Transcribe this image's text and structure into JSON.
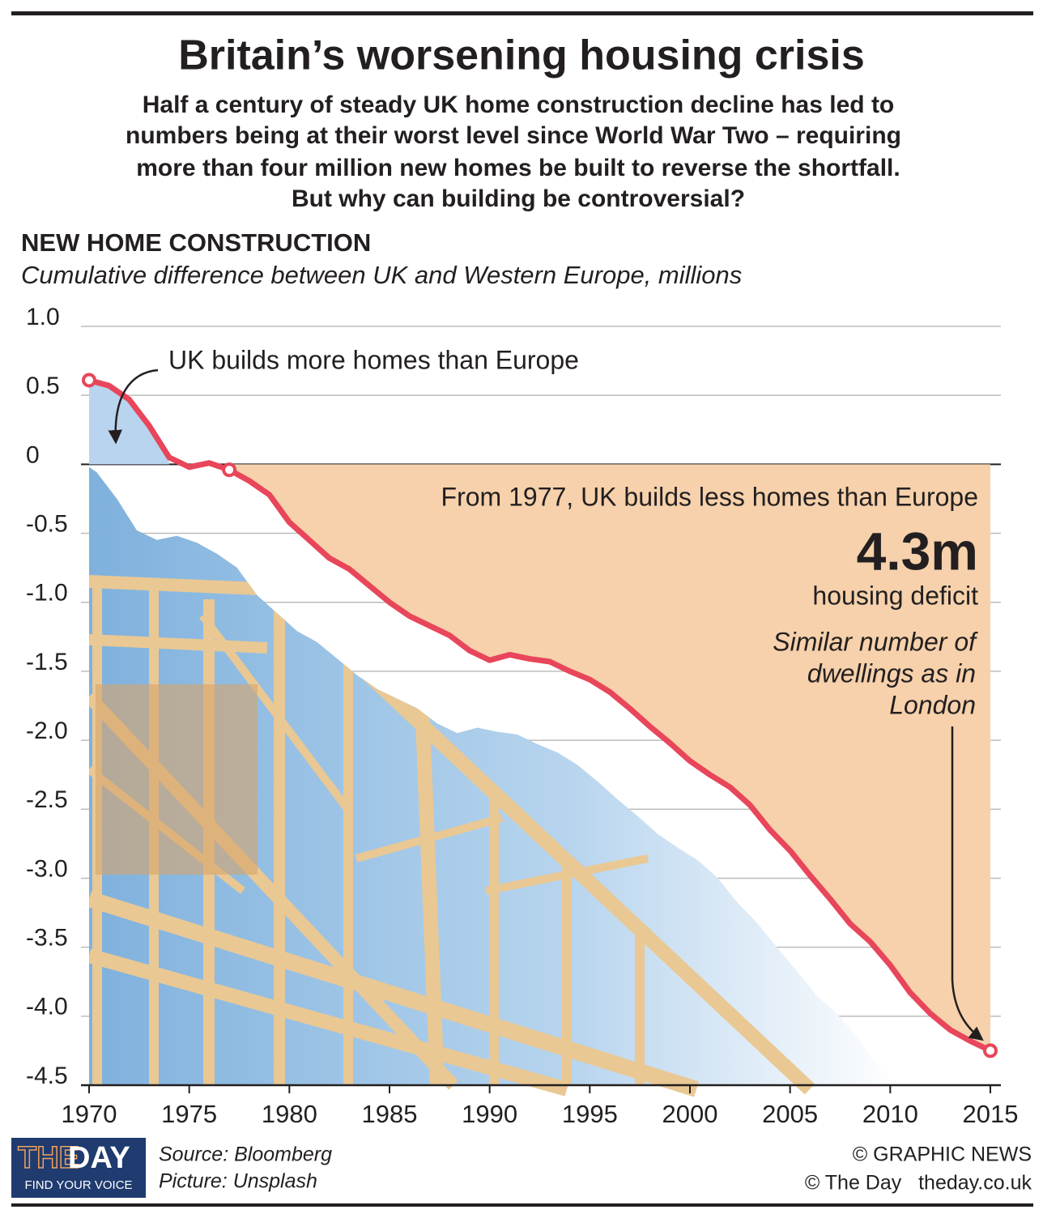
{
  "chart_data": {
    "type": "line",
    "title": "Britain’s worsening housing crisis",
    "subtitle": [
      "Half a century of steady UK home construction decline has led to",
      "numbers being at their worst level since World War Two – requiring",
      "more than four million new homes be built to reverse the shortfall.",
      "But why can building be controversial?"
    ],
    "heading": "NEW HOME CONSTRUCTION",
    "y_label": "Cumulative difference between UK and Western Europe, millions",
    "x": [
      1970,
      1971,
      1972,
      1973,
      1974,
      1975,
      1976,
      1977,
      1978,
      1979,
      1980,
      1981,
      1982,
      1983,
      1984,
      1985,
      1986,
      1987,
      1988,
      1989,
      1990,
      1991,
      1992,
      1993,
      1994,
      1995,
      1996,
      1997,
      1998,
      1999,
      2000,
      2001,
      2002,
      2003,
      2004,
      2005,
      2006,
      2007,
      2008,
      2009,
      2010,
      2011,
      2012,
      2013,
      2014,
      2015
    ],
    "values": [
      0.61,
      0.57,
      0.47,
      0.28,
      0.05,
      -0.02,
      0.01,
      -0.04,
      -0.12,
      -0.22,
      -0.42,
      -0.55,
      -0.68,
      -0.76,
      -0.88,
      -1.0,
      -1.1,
      -1.17,
      -1.24,
      -1.35,
      -1.42,
      -1.38,
      -1.41,
      -1.43,
      -1.5,
      -1.56,
      -1.65,
      -1.77,
      -1.9,
      -2.02,
      -2.15,
      -2.25,
      -2.34,
      -2.47,
      -2.65,
      -2.8,
      -2.98,
      -3.15,
      -3.33,
      -3.46,
      -3.63,
      -3.83,
      -3.98,
      -4.1,
      -4.18,
      -4.25
    ],
    "color": "#e8465a",
    "fill_above": "#b9d4ee",
    "fill_below": "#f6d1ab",
    "highlighted_x": [
      1970,
      1977,
      2015
    ],
    "xlim": [
      1970,
      2015
    ],
    "xticks": [
      1970,
      1975,
      1980,
      1985,
      1990,
      1995,
      2000,
      2005,
      2010,
      2015
    ],
    "ylim": [
      -4.5,
      1.0
    ],
    "yticks": [
      {
        "value": 1.0,
        "label": "1.0"
      },
      0.5,
      0,
      -0.5,
      {
        "value": -1.0,
        "label": "-1.0"
      },
      -1.5,
      {
        "value": -2.0,
        "label": "-2.0"
      },
      -2.5,
      {
        "value": -3.0,
        "label": "-3.0"
      },
      -3.5,
      {
        "value": -4.0,
        "label": "-4.0"
      },
      -4.5
    ],
    "grid": true,
    "annotations": {
      "surplus": "UK builds more homes than Europe",
      "deficit": "From 1977, UK builds less homes than Europe",
      "big_number": "4.3m",
      "big_number_label": "housing deficit",
      "note": [
        "Similar number of",
        "dwellings as in",
        "London"
      ]
    },
    "source": [
      "Source: Bloomberg",
      "Picture: Unsplash"
    ],
    "credits": [
      "© GRAPHIC NEWS",
      "© The Day   theday.co.uk"
    ],
    "logo": {
      "the": "THE",
      "day": "DAY",
      "tagline": "FIND YOUR VOICE"
    }
  }
}
